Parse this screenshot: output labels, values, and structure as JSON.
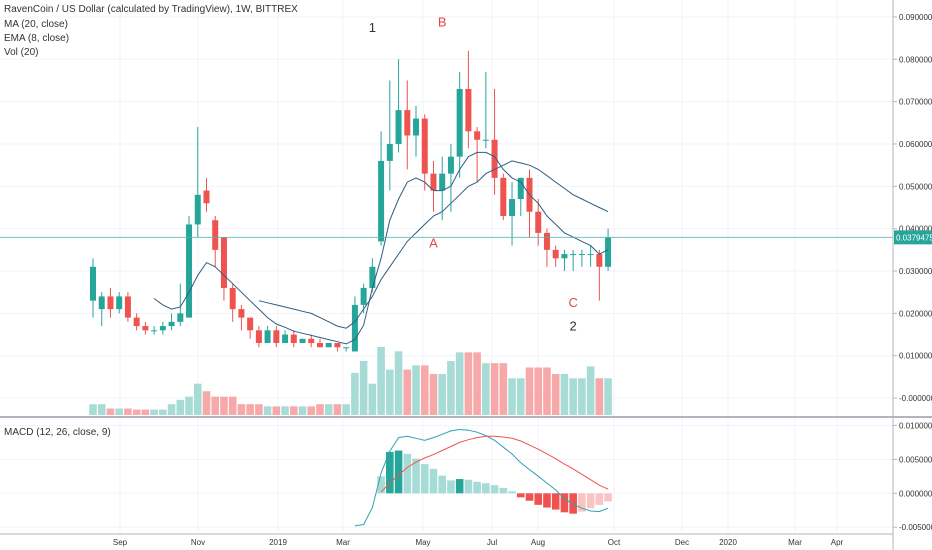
{
  "chart_data": {
    "type": "candlestick",
    "title": "RavenCoin / US Dollar (calculated by TradingView), 1W, BITTREX",
    "indicators": [
      "MA (20, close)",
      "EMA (8, close)",
      "Vol (20)"
    ],
    "macd_label": "MACD (12, 26, close, 9)",
    "price_axis_ticks": [
      "0.09000000",
      "0.08000000",
      "0.07000000",
      "0.06000000",
      "0.05000000",
      "0.04000000",
      "0.03000000",
      "0.02000000",
      "0.01000000",
      "-0.00000000"
    ],
    "price_ticks_values": [
      0.09,
      0.08,
      0.07,
      0.06,
      0.05,
      0.04,
      0.03,
      0.02,
      0.01,
      0.0
    ],
    "ylim": [
      -0.004,
      0.094
    ],
    "macd_axis_ticks": [
      "0.01000000",
      "0.00500000",
      "0.00000000",
      "-0.00500000"
    ],
    "macd_ticks_values": [
      0.01,
      0.005,
      0.0,
      -0.005
    ],
    "macd_ylim": [
      -0.0057,
      0.0108
    ],
    "x_axis_labels": [
      "Sep",
      "Nov",
      "2019",
      "Mar",
      "May",
      "Jul",
      "Aug",
      "Oct",
      "Dec",
      "2020",
      "Mar",
      "Apr"
    ],
    "last_price": "0.03794757",
    "last_price_value": 0.03794757,
    "annotations": [
      {
        "text": "1",
        "week": 32,
        "price": 0.0865,
        "color": "#333333"
      },
      {
        "text": "B",
        "week": 40,
        "price": 0.0878,
        "color": "#e8454a"
      },
      {
        "text": "A",
        "week": 39,
        "price": 0.0355,
        "color": "#e8454a"
      },
      {
        "text": "C",
        "week": 55,
        "price": 0.0215,
        "color": "#e8454a"
      },
      {
        "text": "2",
        "week": 55,
        "price": 0.016,
        "color": "#333333"
      }
    ],
    "weeks_start": [
      [
        0.023,
        0.031,
        0.033,
        0.019
      ],
      [
        0.021,
        0.024,
        0.025,
        0.017
      ],
      [
        0.024,
        0.021,
        0.026,
        0.019
      ],
      [
        0.021,
        0.024,
        0.025,
        0.02
      ],
      [
        0.024,
        0.019,
        0.025,
        0.018
      ],
      [
        0.019,
        0.017,
        0.02,
        0.016
      ],
      [
        0.017,
        0.016,
        0.018,
        0.015
      ],
      [
        0.016,
        0.016,
        0.017,
        0.015
      ],
      [
        0.016,
        0.017,
        0.018,
        0.015
      ],
      [
        0.017,
        0.018,
        0.02,
        0.016
      ],
      [
        0.018,
        0.02,
        0.027,
        0.017
      ],
      [
        0.019,
        0.041,
        0.043,
        0.019
      ],
      [
        0.041,
        0.048,
        0.064,
        0.038
      ],
      [
        0.049,
        0.046,
        0.052,
        0.044
      ],
      [
        0.042,
        0.035,
        0.043,
        0.031
      ],
      [
        0.038,
        0.026,
        0.036,
        0.023
      ],
      [
        0.026,
        0.021,
        0.027,
        0.018
      ],
      [
        0.021,
        0.019,
        0.022,
        0.016
      ],
      [
        0.019,
        0.016,
        0.019,
        0.014
      ],
      [
        0.016,
        0.013,
        0.017,
        0.012
      ],
      [
        0.013,
        0.016,
        0.017,
        0.013
      ],
      [
        0.016,
        0.013,
        0.017,
        0.012
      ],
      [
        0.013,
        0.015,
        0.016,
        0.013
      ],
      [
        0.015,
        0.013,
        0.016,
        0.012
      ],
      [
        0.013,
        0.014,
        0.014,
        0.013
      ],
      [
        0.014,
        0.013,
        0.015,
        0.012
      ],
      [
        0.013,
        0.012,
        0.014,
        0.012
      ],
      [
        0.012,
        0.013,
        0.013,
        0.012
      ],
      [
        0.013,
        0.012,
        0.013,
        0.011
      ],
      [
        0.012,
        0.012,
        0.012,
        0.011
      ],
      [
        0.011,
        0.022,
        0.024,
        0.011
      ],
      [
        0.022,
        0.026,
        0.027,
        0.02
      ],
      [
        0.026,
        0.031,
        0.033,
        0.025
      ],
      [
        0.037,
        0.056,
        0.063,
        0.036
      ],
      [
        0.056,
        0.06,
        0.075,
        0.049
      ],
      [
        0.06,
        0.068,
        0.08,
        0.058
      ],
      [
        0.068,
        0.062,
        0.075,
        0.054
      ],
      [
        0.062,
        0.066,
        0.069,
        0.057
      ],
      [
        0.066,
        0.053,
        0.067,
        0.049
      ],
      [
        0.053,
        0.049,
        0.056,
        0.044
      ],
      [
        0.049,
        0.053,
        0.057,
        0.042
      ],
      [
        0.053,
        0.057,
        0.06,
        0.044
      ],
      [
        0.057,
        0.073,
        0.077,
        0.052
      ],
      [
        0.073,
        0.063,
        0.082,
        0.059
      ],
      [
        0.063,
        0.061,
        0.064,
        0.051
      ],
      [
        0.061,
        0.061,
        0.077,
        0.059
      ],
      [
        0.061,
        0.052,
        0.073,
        0.048
      ],
      [
        0.052,
        0.043,
        0.053,
        0.042
      ],
      [
        0.043,
        0.047,
        0.051,
        0.036
      ],
      [
        0.047,
        0.052,
        0.052,
        0.043
      ],
      [
        0.052,
        0.044,
        0.054,
        0.038
      ],
      [
        0.044,
        0.039,
        0.047,
        0.036
      ],
      [
        0.039,
        0.035,
        0.04,
        0.031
      ],
      [
        0.035,
        0.033,
        0.036,
        0.031
      ],
      [
        0.033,
        0.034,
        0.035,
        0.03
      ],
      [
        0.034,
        0.034,
        0.035,
        0.03
      ],
      [
        0.034,
        0.034,
        0.035,
        0.031
      ],
      [
        0.034,
        0.034,
        0.036,
        0.031
      ],
      [
        0.034,
        0.031,
        0.035,
        0.023
      ],
      [
        0.031,
        0.038,
        0.04,
        0.03
      ]
    ],
    "volume_rel": [
      10,
      10,
      6,
      6,
      6,
      5,
      5,
      5,
      5,
      10,
      14,
      17,
      29,
      22,
      17,
      17,
      17,
      10,
      10,
      10,
      8,
      8,
      8,
      8,
      8,
      8,
      10,
      10,
      10,
      10,
      39,
      50,
      29,
      63,
      42,
      59,
      42,
      46,
      46,
      38,
      38,
      50,
      58,
      58,
      58,
      48,
      48,
      48,
      34,
      34,
      44,
      44,
      44,
      38,
      38,
      34,
      34,
      45,
      34,
      34
    ],
    "ema8": [
      null,
      null,
      null,
      null,
      null,
      null,
      null,
      0.0235,
      0.022,
      0.021,
      0.0215,
      0.025,
      0.029,
      0.032,
      0.031,
      0.029,
      0.027,
      0.025,
      0.023,
      0.021,
      0.019,
      0.0175,
      0.0167,
      0.0158,
      0.0153,
      0.0148,
      0.0143,
      0.0138,
      0.0133,
      0.0128,
      0.0138,
      0.0172,
      0.026,
      0.033,
      0.042,
      0.047,
      0.051,
      0.052,
      0.051,
      0.049,
      0.049,
      0.05,
      0.054,
      0.057,
      0.058,
      0.058,
      0.057,
      0.054,
      0.052,
      0.051,
      0.048,
      0.046,
      0.043,
      0.041,
      0.039,
      0.038,
      0.037,
      0.036,
      0.034,
      0.035
    ],
    "ma20": [
      null,
      null,
      null,
      null,
      null,
      null,
      null,
      null,
      null,
      null,
      null,
      null,
      null,
      null,
      null,
      null,
      null,
      null,
      null,
      0.023,
      0.0225,
      0.022,
      0.0215,
      0.021,
      0.0205,
      0.02,
      0.019,
      0.018,
      0.017,
      0.0165,
      0.018,
      0.021,
      0.024,
      0.028,
      0.031,
      0.034,
      0.037,
      0.039,
      0.041,
      0.043,
      0.044,
      0.046,
      0.048,
      0.05,
      0.051,
      0.053,
      0.054,
      0.055,
      0.056,
      0.0555,
      0.055,
      0.054,
      0.0525,
      0.051,
      0.0495,
      0.048,
      0.047,
      0.046,
      0.045,
      0.044
    ],
    "macd_hist": [
      null,
      null,
      null,
      null,
      null,
      null,
      null,
      null,
      null,
      null,
      null,
      null,
      null,
      null,
      null,
      null,
      null,
      null,
      null,
      null,
      null,
      null,
      null,
      null,
      null,
      null,
      null,
      null,
      null,
      null,
      null,
      null,
      null,
      0.0025,
      0.0061,
      0.0063,
      0.0058,
      0.0051,
      0.0043,
      0.0036,
      0.0026,
      0.0019,
      0.0021,
      0.002,
      0.0017,
      0.0015,
      0.0012,
      0.0008,
      0.0003,
      -0.0006,
      -0.0011,
      -0.0017,
      -0.0021,
      -0.0024,
      -0.0028,
      -0.003,
      -0.0027,
      -0.0022,
      -0.0017,
      -0.0012
    ],
    "macd_line": [
      null,
      null,
      null,
      null,
      null,
      null,
      null,
      null,
      null,
      null,
      null,
      null,
      null,
      null,
      null,
      null,
      null,
      null,
      null,
      null,
      null,
      null,
      null,
      null,
      null,
      null,
      null,
      null,
      null,
      null,
      -0.0048,
      -0.0046,
      -0.0021,
      0.003,
      0.0062,
      0.0082,
      0.0084,
      0.0081,
      0.0078,
      0.0082,
      0.0087,
      0.0092,
      0.0094,
      0.0093,
      0.009,
      0.0085,
      0.0078,
      0.0068,
      0.0058,
      0.0045,
      0.0035,
      0.0025,
      0.0015,
      0.0005,
      -0.0008,
      -0.0016,
      -0.0022,
      -0.0026,
      -0.0027,
      -0.0022
    ],
    "macd_signal": [
      null,
      null,
      null,
      null,
      null,
      null,
      null,
      null,
      null,
      null,
      null,
      null,
      null,
      null,
      null,
      null,
      null,
      null,
      null,
      null,
      null,
      null,
      null,
      null,
      null,
      null,
      null,
      null,
      null,
      null,
      null,
      null,
      null,
      0.0002,
      0.0015,
      0.0027,
      0.0038,
      0.0046,
      0.0052,
      0.0057,
      0.0063,
      0.0069,
      0.0075,
      0.0079,
      0.0082,
      0.0084,
      0.0084,
      0.0083,
      0.0081,
      0.0077,
      0.0071,
      0.0065,
      0.0058,
      0.0051,
      0.0043,
      0.0036,
      0.0028,
      0.002,
      0.0012,
      0.0006
    ]
  }
}
